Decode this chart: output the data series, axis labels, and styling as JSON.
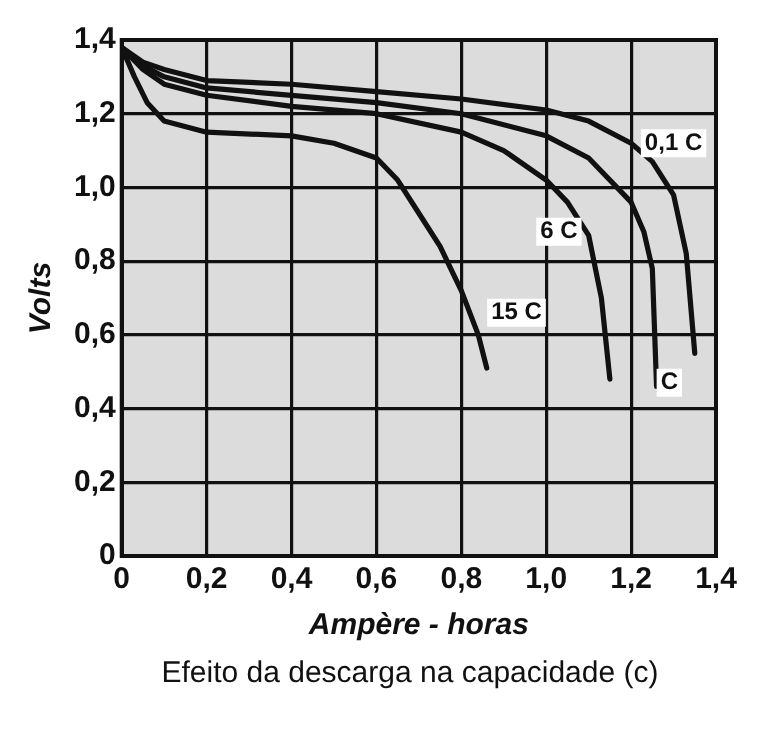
{
  "chart_data": {
    "type": "line",
    "xlabel": "Ampère - horas",
    "ylabel": "Volts",
    "xlim": [
      0,
      1.4
    ],
    "ylim": [
      0,
      1.4
    ],
    "xticks": [
      0,
      {
        "value": 0.2,
        "label": "0,2"
      },
      {
        "value": 0.4,
        "label": "0,4"
      },
      {
        "value": 0.6,
        "label": "0,6"
      },
      {
        "value": 0.8,
        "label": "0,8"
      },
      {
        "value": 1.0,
        "label": "1,0"
      },
      {
        "value": 1.2,
        "label": "1,2"
      },
      {
        "value": 1.4,
        "label": "1,4"
      }
    ],
    "yticks": [
      0,
      {
        "value": 0.2,
        "label": "0,2"
      },
      {
        "value": 0.4,
        "label": "0,4"
      },
      {
        "value": 0.6,
        "label": "0,6"
      },
      {
        "value": 0.8,
        "label": "0,8"
      },
      {
        "value": 1.0,
        "label": "1,0"
      },
      {
        "value": 1.2,
        "label": "1,2"
      },
      {
        "value": 1.4,
        "label": "1,4"
      }
    ],
    "grid": true,
    "legend": false,
    "marker": "none",
    "line_style": "solid",
    "series": [
      {
        "color": "#111111",
        "x": [
          0,
          0.03,
          0.06,
          0.1,
          0.2,
          0.4,
          0.5,
          0.6,
          0.65,
          0.7,
          0.75,
          0.8,
          0.84,
          0.86
        ],
        "values": [
          1.38,
          1.3,
          1.23,
          1.18,
          1.15,
          1.14,
          1.12,
          1.08,
          1.02,
          0.93,
          0.84,
          0.72,
          0.6,
          0.51
        ]
      },
      {
        "color": "#111111",
        "x": [
          0,
          0.05,
          0.1,
          0.2,
          0.4,
          0.6,
          0.8,
          0.9,
          1.0,
          1.05,
          1.1,
          1.13,
          1.15
        ],
        "values": [
          1.38,
          1.32,
          1.28,
          1.25,
          1.22,
          1.2,
          1.15,
          1.1,
          1.02,
          0.96,
          0.87,
          0.7,
          0.48
        ]
      },
      {
        "color": "#111111",
        "x": [
          0,
          0.05,
          0.1,
          0.2,
          0.4,
          0.6,
          0.8,
          1.0,
          1.1,
          1.2,
          1.23,
          1.25,
          1.26
        ],
        "values": [
          1.38,
          1.33,
          1.3,
          1.27,
          1.25,
          1.23,
          1.2,
          1.14,
          1.08,
          0.96,
          0.88,
          0.78,
          0.46
        ]
      },
      {
        "color": "#111111",
        "x": [
          0,
          0.05,
          0.1,
          0.2,
          0.4,
          0.6,
          0.8,
          1.0,
          1.1,
          1.2,
          1.25,
          1.3,
          1.33,
          1.35
        ],
        "values": [
          1.38,
          1.34,
          1.32,
          1.29,
          1.28,
          1.26,
          1.24,
          1.21,
          1.18,
          1.12,
          1.07,
          0.98,
          0.82,
          0.55
        ]
      }
    ],
    "annotations": [
      {
        "text": "15 C",
        "x": 0.93,
        "y": 0.66
      },
      {
        "text": "6 C",
        "x": 1.03,
        "y": 0.88
      },
      {
        "text": "C",
        "x": 1.29,
        "y": 0.47
      },
      {
        "text": "0,1 C",
        "x": 1.3,
        "y": 1.12
      },
      "Efeito da descarga na capacidade (c)"
    ]
  }
}
